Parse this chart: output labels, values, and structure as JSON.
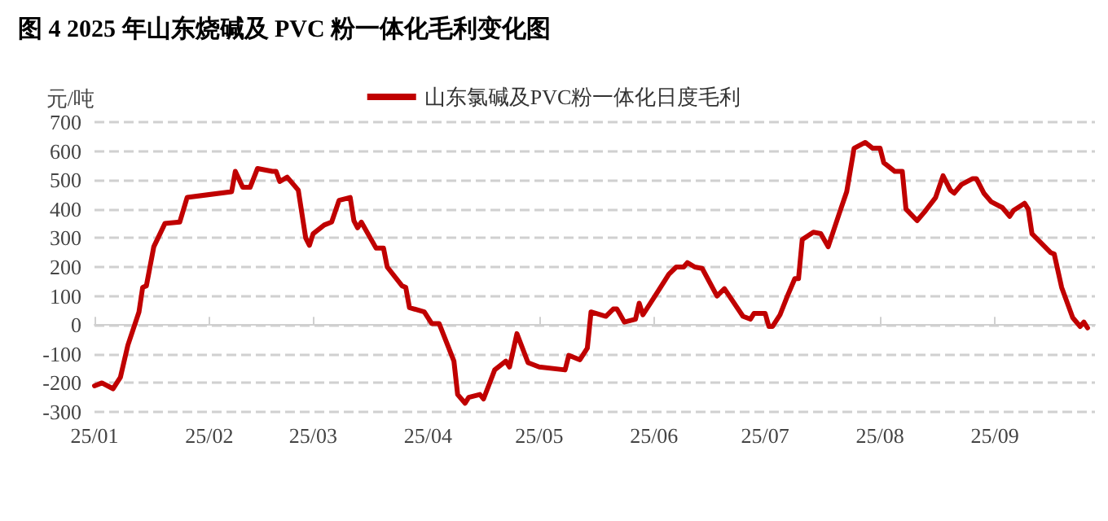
{
  "chart_data": {
    "type": "line",
    "title": "图 4 2025 年山东烧碱及 PVC 粉一体化毛利变化图",
    "ylabel": "元/吨",
    "x": [
      "2025-01-01",
      "2025-01-03",
      "2025-01-06",
      "2025-01-08",
      "2025-01-10",
      "2025-01-13",
      "2025-01-14",
      "2025-01-15",
      "2025-01-17",
      "2025-01-20",
      "2025-01-24",
      "2025-01-26",
      "2025-02-07",
      "2025-02-08",
      "2025-02-10",
      "2025-02-12",
      "2025-02-14",
      "2025-02-18",
      "2025-02-19",
      "2025-02-20",
      "2025-02-22",
      "2025-02-25",
      "2025-02-27",
      "2025-02-28",
      "2025-03-01",
      "2025-03-04",
      "2025-03-06",
      "2025-03-08",
      "2025-03-11",
      "2025-03-12",
      "2025-03-13",
      "2025-03-14",
      "2025-03-18",
      "2025-03-20",
      "2025-03-21",
      "2025-03-25",
      "2025-03-26",
      "2025-03-27",
      "2025-03-31",
      "2025-04-02",
      "2025-04-04",
      "2025-04-08",
      "2025-04-09",
      "2025-04-11",
      "2025-04-12",
      "2025-04-15",
      "2025-04-16",
      "2025-04-19",
      "2025-04-22",
      "2025-04-23",
      "2025-04-25",
      "2025-04-28",
      "2025-05-01",
      "2025-05-08",
      "2025-05-09",
      "2025-05-12",
      "2025-05-14",
      "2025-05-15",
      "2025-05-19",
      "2025-05-21",
      "2025-05-22",
      "2025-05-24",
      "2025-05-27",
      "2025-05-28",
      "2025-05-29",
      "2025-06-02",
      "2025-06-05",
      "2025-06-07",
      "2025-06-09",
      "2025-06-10",
      "2025-06-12",
      "2025-06-14",
      "2025-06-18",
      "2025-06-20",
      "2025-06-25",
      "2025-06-27",
      "2025-06-28",
      "2025-07-01",
      "2025-07-02",
      "2025-07-03",
      "2025-07-05",
      "2025-07-07",
      "2025-07-09",
      "2025-07-10",
      "2025-07-11",
      "2025-07-14",
      "2025-07-16",
      "2025-07-18",
      "2025-07-21",
      "2025-07-23",
      "2025-07-25",
      "2025-07-28",
      "2025-07-30",
      "2025-08-01",
      "2025-08-02",
      "2025-08-05",
      "2025-08-07",
      "2025-08-08",
      "2025-08-11",
      "2025-08-13",
      "2025-08-16",
      "2025-08-18",
      "2025-08-20",
      "2025-08-21",
      "2025-08-23",
      "2025-08-26",
      "2025-08-27",
      "2025-08-29",
      "2025-08-31",
      "2025-09-03",
      "2025-09-05",
      "2025-09-06",
      "2025-09-09",
      "2025-09-10",
      "2025-09-11",
      "2025-09-16",
      "2025-09-17",
      "2025-09-19",
      "2025-09-22",
      "2025-09-24",
      "2025-09-25",
      "2025-09-26"
    ],
    "series": [
      {
        "name": "山东氯碱及PVC粉一体化日度毛利",
        "color": "#c00000",
        "values": [
          -210,
          -200,
          -220,
          -180,
          -70,
          45,
          130,
          135,
          270,
          350,
          355,
          440,
          460,
          530,
          475,
          475,
          540,
          530,
          530,
          495,
          510,
          465,
          300,
          275,
          315,
          345,
          355,
          430,
          440,
          360,
          335,
          355,
          265,
          265,
          200,
          135,
          130,
          60,
          45,
          5,
          5,
          -125,
          -240,
          -270,
          -250,
          -240,
          -255,
          -155,
          -125,
          -145,
          -30,
          -130,
          -145,
          -155,
          -105,
          -120,
          -80,
          45,
          30,
          55,
          55,
          10,
          20,
          75,
          35,
          115,
          175,
          200,
          200,
          215,
          200,
          195,
          100,
          125,
          30,
          20,
          40,
          40,
          -5,
          -5,
          35,
          100,
          160,
          160,
          295,
          320,
          315,
          270,
          385,
          460,
          610,
          630,
          610,
          610,
          560,
          530,
          530,
          400,
          360,
          390,
          440,
          515,
          465,
          455,
          485,
          505,
          505,
          455,
          425,
          405,
          375,
          395,
          420,
          400,
          315,
          250,
          245,
          130,
          25,
          -5,
          10,
          -10
        ]
      }
    ],
    "xlim": [
      "2025-01-01",
      "2025-09-28"
    ],
    "xticks": [
      {
        "value": "2025-01-01",
        "label": "25/01"
      },
      {
        "value": "2025-02-01",
        "label": "25/02"
      },
      {
        "value": "2025-03-01",
        "label": "25/03"
      },
      {
        "value": "2025-04-01",
        "label": "25/04"
      },
      {
        "value": "2025-05-01",
        "label": "25/05"
      },
      {
        "value": "2025-06-01",
        "label": "25/06"
      },
      {
        "value": "2025-07-01",
        "label": "25/07"
      },
      {
        "value": "2025-08-01",
        "label": "25/08"
      },
      {
        "value": "2025-09-01",
        "label": "25/09"
      }
    ],
    "ylim": [
      -300,
      700
    ],
    "yticks": [
      -300,
      -200,
      -100,
      0,
      100,
      200,
      300,
      400,
      500,
      600,
      700
    ],
    "grid": "y",
    "legend": "top",
    "marker": "none",
    "line_style": "solid"
  }
}
